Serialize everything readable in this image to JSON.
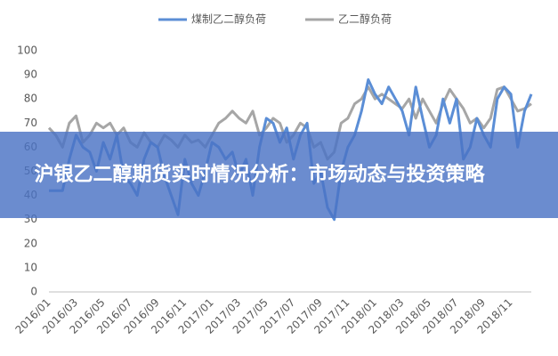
{
  "chart_data": {
    "type": "line",
    "categories": [
      "2016/01",
      null,
      null,
      null,
      "2016/03",
      null,
      null,
      null,
      "2016/05",
      null,
      null,
      null,
      "2016/07",
      null,
      null,
      null,
      "2016/09",
      null,
      null,
      null,
      "2016/11",
      null,
      null,
      null,
      "2017/01",
      null,
      null,
      null,
      "2017/03",
      null,
      null,
      null,
      "2017/05",
      null,
      null,
      null,
      "2017/07",
      null,
      null,
      null,
      "2017/09",
      null,
      null,
      null,
      "2017/11",
      null,
      null,
      null,
      "2018/01",
      null,
      null,
      null,
      "2018/03",
      null,
      null,
      null,
      "2018/05",
      null,
      null,
      null,
      "2018/07",
      null,
      null,
      null,
      "2018/09",
      null,
      null,
      null,
      "2018/11",
      null,
      null,
      null
    ],
    "series": [
      {
        "name": "煤制乙二醇负荷",
        "color": "#5b8ed6",
        "values": [
          42,
          42,
          42,
          55,
          65,
          60,
          58,
          50,
          62,
          55,
          65,
          48,
          45,
          40,
          55,
          62,
          60,
          48,
          40,
          32,
          55,
          45,
          40,
          50,
          62,
          60,
          55,
          58,
          48,
          55,
          40,
          60,
          72,
          70,
          62,
          68,
          55,
          65,
          70,
          45,
          50,
          35,
          30,
          50,
          60,
          65,
          75,
          88,
          82,
          78,
          85,
          80,
          75,
          65,
          85,
          72,
          60,
          65,
          80,
          70,
          80,
          55,
          60,
          72,
          65,
          60,
          80,
          85,
          82,
          60,
          75,
          82
        ]
      },
      {
        "name": "乙二醇负荷",
        "color": "#a6a6a6",
        "values": [
          68,
          65,
          60,
          70,
          73,
          62,
          65,
          70,
          68,
          70,
          65,
          68,
          62,
          60,
          66,
          62,
          60,
          65,
          63,
          60,
          65,
          62,
          63,
          60,
          65,
          70,
          72,
          75,
          72,
          70,
          75,
          65,
          68,
          72,
          70,
          62,
          65,
          70,
          68,
          60,
          62,
          55,
          58,
          70,
          72,
          78,
          80,
          85,
          80,
          82,
          80,
          78,
          76,
          80,
          72,
          80,
          75,
          70,
          78,
          84,
          80,
          76,
          70,
          72,
          68,
          72,
          84,
          85,
          80,
          75,
          76,
          78
        ]
      }
    ],
    "ylim": [
      0,
      100
    ],
    "yticks": [
      0,
      10,
      20,
      30,
      40,
      50,
      60,
      70,
      80,
      90,
      100
    ],
    "grid": false,
    "legend": "top"
  },
  "overlay": {
    "title": "沪银乙二醇期货实时情况分析：市场动态与投资策略"
  }
}
